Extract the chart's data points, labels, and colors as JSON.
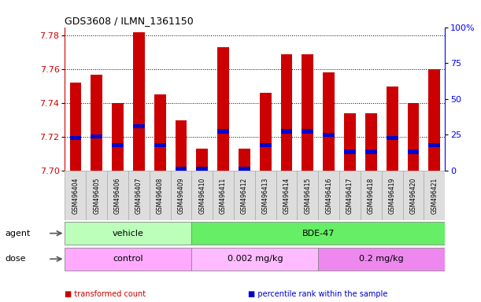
{
  "title": "GDS3608 / ILMN_1361150",
  "samples": [
    "GSM496404",
    "GSM496405",
    "GSM496406",
    "GSM496407",
    "GSM496408",
    "GSM496409",
    "GSM496410",
    "GSM496411",
    "GSM496412",
    "GSM496413",
    "GSM496414",
    "GSM496415",
    "GSM496416",
    "GSM496417",
    "GSM496418",
    "GSM496419",
    "GSM496420",
    "GSM496421"
  ],
  "bar_tops": [
    7.752,
    7.757,
    7.74,
    7.782,
    7.745,
    7.73,
    7.713,
    7.773,
    7.713,
    7.746,
    7.769,
    7.769,
    7.758,
    7.734,
    7.734,
    7.75,
    7.74,
    7.76
  ],
  "bar_base": 7.7,
  "blue_positions": [
    7.718,
    7.719,
    7.714,
    7.725,
    7.714,
    7.7,
    7.7,
    7.722,
    7.7,
    7.714,
    7.722,
    7.722,
    7.72,
    7.71,
    7.71,
    7.718,
    7.71,
    7.714
  ],
  "bar_color": "#CC0000",
  "blue_color": "#0000CC",
  "ymin": 7.7,
  "ymax": 7.785,
  "yticks": [
    7.7,
    7.72,
    7.74,
    7.76,
    7.78
  ],
  "y2ticks": [
    0,
    25,
    50,
    75,
    100
  ],
  "agent_groups": [
    {
      "label": "vehicle",
      "start": 0,
      "end": 5,
      "color": "#BBFFBB"
    },
    {
      "label": "BDE-47",
      "start": 6,
      "end": 17,
      "color": "#66EE66"
    }
  ],
  "dose_groups": [
    {
      "label": "control",
      "start": 0,
      "end": 5,
      "color": "#FFAAFF"
    },
    {
      "label": "0.002 mg/kg",
      "start": 6,
      "end": 11,
      "color": "#FFBBFF"
    },
    {
      "label": "0.2 mg/kg",
      "start": 12,
      "end": 17,
      "color": "#EE88EE"
    }
  ],
  "legend_items": [
    {
      "label": "transformed count",
      "color": "#CC0000"
    },
    {
      "label": "percentile rank within the sample",
      "color": "#0000CC"
    }
  ],
  "agent_label": "agent",
  "dose_label": "dose",
  "xtick_bg": "#DDDDDD",
  "chart_bg": "white",
  "fig_bg": "white"
}
